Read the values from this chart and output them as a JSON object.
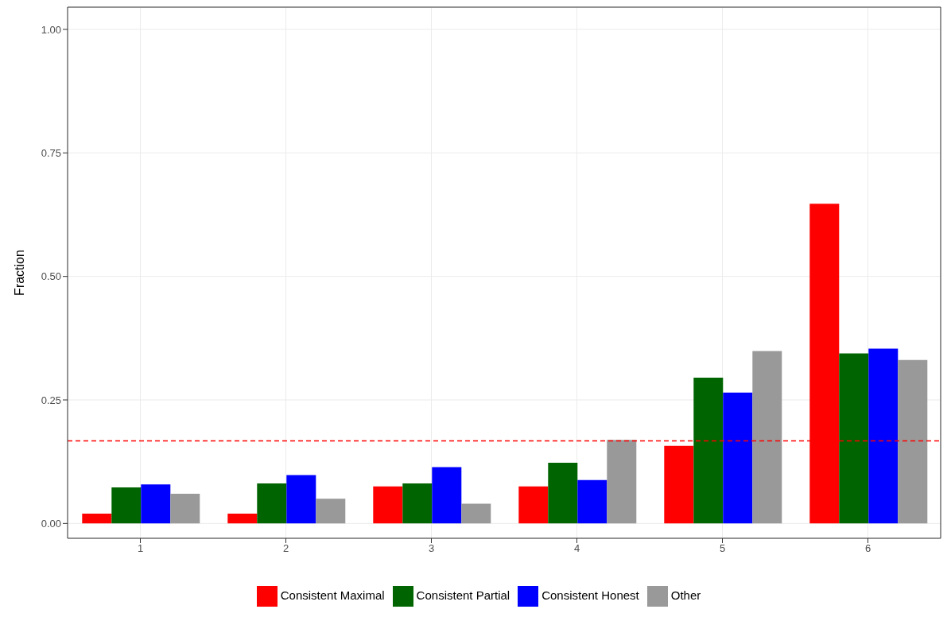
{
  "chart_data": {
    "type": "bar",
    "ylabel": "Fraction",
    "categories": [
      "1",
      "2",
      "3",
      "4",
      "5",
      "6"
    ],
    "series": [
      {
        "name": "Consistent Maximal",
        "color": "#ff0000",
        "values": [
          0.02,
          0.02,
          0.075,
          0.075,
          0.157,
          0.647
        ]
      },
      {
        "name": "Consistent Partial",
        "color": "#006400",
        "values": [
          0.073,
          0.081,
          0.081,
          0.123,
          0.295,
          0.344
        ]
      },
      {
        "name": "Consistent Honest",
        "color": "#0000ff",
        "values": [
          0.079,
          0.098,
          0.114,
          0.088,
          0.265,
          0.354
        ]
      },
      {
        "name": "Other",
        "color": "#999999",
        "values": [
          0.06,
          0.05,
          0.04,
          0.169,
          0.349,
          0.331
        ]
      }
    ],
    "ylim": [
      -0.03,
      1.045
    ],
    "yticks": [
      {
        "value": 0,
        "label": "0.00"
      },
      {
        "value": 0.25,
        "label": "0.25"
      },
      {
        "value": 0.5,
        "label": "0.50"
      },
      {
        "value": 0.75,
        "label": "0.75"
      },
      {
        "value": 1,
        "label": "1.00"
      }
    ],
    "ref_lines": [
      {
        "axis": "y",
        "value": 0.167,
        "color": "#ff0000",
        "line_style": "dashed"
      }
    ],
    "grid": true,
    "legend": "bottom"
  }
}
